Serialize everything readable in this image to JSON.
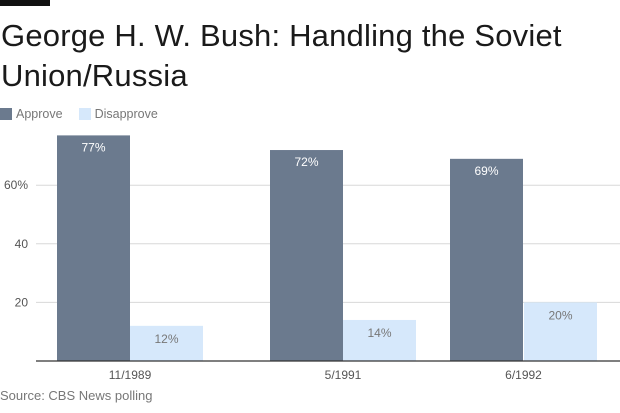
{
  "title": "George H. W. Bush: Handling the Soviet Union/Russia",
  "source": "Source: CBS News polling",
  "legend": {
    "approve": "Approve",
    "disapprove": "Disapprove"
  },
  "colors": {
    "approve": "#6b7a8e",
    "disapprove": "#d6e8fb",
    "grid": "#d8d8d8",
    "axis": "#333333",
    "tick_text": "#555555",
    "bar_label_light": "#ffffff",
    "bar_label_dark": "#777777"
  },
  "chart_data": {
    "type": "bar",
    "categories": [
      "11/1989",
      "5/1991",
      "6/1992"
    ],
    "series": [
      {
        "name": "Approve",
        "values": [
          77,
          72,
          69
        ],
        "labels": [
          "77%",
          "72%",
          "69%"
        ]
      },
      {
        "name": "Disapprove",
        "values": [
          12,
          14,
          20
        ],
        "labels": [
          "12%",
          "14%",
          "20%"
        ]
      }
    ],
    "yticks": [
      {
        "value": 20,
        "label": "20"
      },
      {
        "value": 40,
        "label": "40"
      },
      {
        "value": 60,
        "label": "60%"
      }
    ],
    "ylim": [
      0,
      80
    ],
    "grid": true,
    "legend_position": "top-left"
  }
}
